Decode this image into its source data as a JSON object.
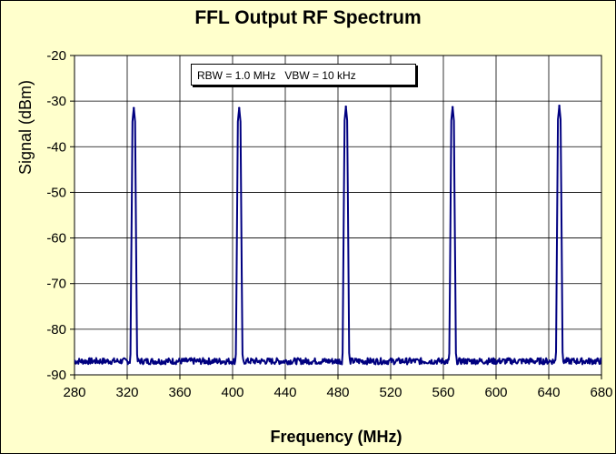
{
  "chart_data": {
    "type": "line",
    "title": "FFL Output RF Spectrum",
    "xlabel": "Frequency (MHz)",
    "ylabel": "Signal (dBm)",
    "xlim": [
      280,
      680
    ],
    "ylim": [
      -90,
      -20
    ],
    "xticks": [
      280,
      320,
      360,
      400,
      440,
      480,
      520,
      560,
      600,
      640,
      680
    ],
    "yticks": [
      -20,
      -30,
      -40,
      -50,
      -60,
      -70,
      -80,
      -90
    ],
    "grid": true,
    "annotation": "RBW = 1.0 MHz   VBW = 10 kHz",
    "series": [
      {
        "color": "#000080",
        "noise_floor_dbm": -87,
        "peaks": [
          {
            "center_mhz": 325,
            "peak_dbm": -31.5
          },
          {
            "center_mhz": 405,
            "peak_dbm": -31.5
          },
          {
            "center_mhz": 486,
            "peak_dbm": -31.2
          },
          {
            "center_mhz": 567,
            "peak_dbm": -31.3
          },
          {
            "center_mhz": 648,
            "peak_dbm": -31.0
          }
        ]
      }
    ]
  },
  "colors": {
    "background": "#ffffcc",
    "plot_background": "#ffffff",
    "line": "#000080"
  }
}
